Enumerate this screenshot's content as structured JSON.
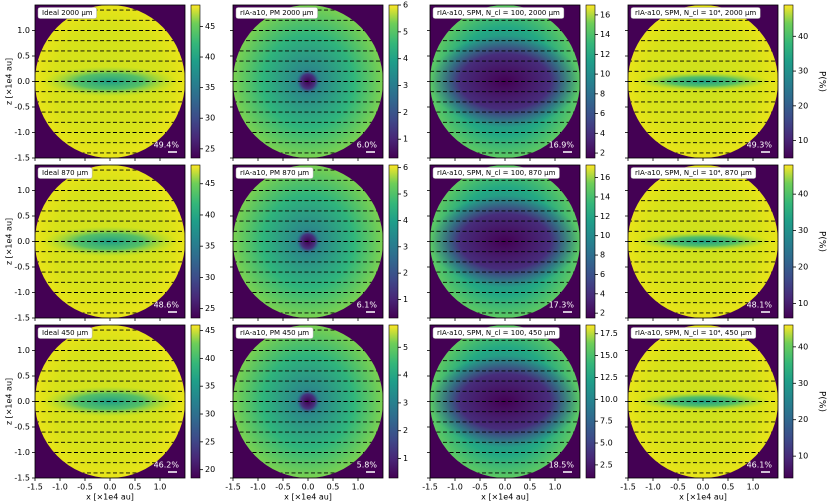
{
  "chart_data": [
    {
      "type": "heatmap",
      "title": "Ideal 2000 µm",
      "annotation": "49.4%",
      "clim": [
        23.5,
        48.5
      ],
      "cticks": [
        25,
        30,
        35,
        40,
        45
      ],
      "xlim": [
        -1.5,
        1.5
      ],
      "ylim": [
        -1.5,
        1.5
      ],
      "xticks": [
        {
          "value": -1.5,
          "label": "-1.5"
        },
        {
          "value": -1,
          "label": "-1.0"
        },
        -0.5,
        {
          "value": 0,
          "label": "0.0"
        },
        0.5,
        {
          "value": 1,
          "label": "1.0"
        }
      ],
      "yticks": [
        {
          "value": -1.5,
          "label": "-1.5"
        },
        {
          "value": -1,
          "label": "-1.0"
        },
        -0.5,
        {
          "value": 0,
          "label": "0.0"
        },
        0.5,
        {
          "value": 1,
          "label": "1.0"
        }
      ],
      "ylabel": "z [×1e4 au]"
    },
    {
      "type": "heatmap",
      "title": "rIA-a10, PM 2000 µm",
      "annotation": "6.0%",
      "clim": [
        0.3,
        6
      ],
      "cticks": [
        1,
        2,
        3,
        4,
        5,
        6
      ],
      "xlim": [
        -1.5,
        1.5
      ],
      "ylim": [
        -1.5,
        1.5
      ],
      "xticks": [
        {
          "value": -1.5,
          "label": "-1.5"
        },
        {
          "value": -1,
          "label": "-1.0"
        },
        -0.5,
        {
          "value": 0,
          "label": "0.0"
        },
        0.5,
        {
          "value": 1,
          "label": "1.0"
        }
      ],
      "yticks": [
        {
          "value": -1.5,
          "label": "-1.5"
        },
        {
          "value": -1,
          "label": "-1.0"
        },
        -0.5,
        {
          "value": 0,
          "label": "0.0"
        },
        0.5,
        {
          "value": 1,
          "label": "1.0"
        }
      ]
    },
    {
      "type": "heatmap",
      "title": "rIA-a10, SPM, N_cl = 100,  2000 µm",
      "annotation": "16.9%",
      "clim": [
        1.5,
        17
      ],
      "cticks": [
        2,
        4,
        6,
        8,
        10,
        12,
        14,
        16
      ],
      "xlim": [
        -1.5,
        1.5
      ],
      "ylim": [
        -1.5,
        1.5
      ],
      "xticks": [
        {
          "value": -1.5,
          "label": "-1.5"
        },
        {
          "value": -1,
          "label": "-1.0"
        },
        -0.5,
        {
          "value": 0,
          "label": "0.0"
        },
        0.5,
        {
          "value": 1,
          "label": "1.0"
        }
      ],
      "yticks": [
        {
          "value": -1.5,
          "label": "-1.5"
        },
        {
          "value": -1,
          "label": "-1.0"
        },
        -0.5,
        {
          "value": 0,
          "label": "0.0"
        },
        0.5,
        {
          "value": 1,
          "label": "1.0"
        }
      ]
    },
    {
      "type": "heatmap",
      "title": "rIA-a10, SPM, N_cl = 10⁴,  2000 µm",
      "annotation": "49.3%",
      "clim": [
        5,
        49
      ],
      "cticks": [
        10,
        20,
        30,
        40
      ],
      "xlim": [
        -1.5,
        1.5
      ],
      "ylim": [
        -1.5,
        1.5
      ],
      "xticks": [
        {
          "value": -1.5,
          "label": "-1.5"
        },
        {
          "value": -1,
          "label": "-1.0"
        },
        -0.5,
        {
          "value": 0,
          "label": "0.0"
        },
        0.5,
        {
          "value": 1,
          "label": "1.0"
        }
      ],
      "yticks": [
        {
          "value": -1.5,
          "label": "-1.5"
        },
        {
          "value": -1,
          "label": "-1.0"
        },
        -0.5,
        {
          "value": 0,
          "label": "0.0"
        },
        0.5,
        {
          "value": 1,
          "label": "1.0"
        }
      ],
      "clabel": "P(%)"
    },
    {
      "type": "heatmap",
      "title": "Ideal 870 µm",
      "annotation": "48.6%",
      "clim": [
        23.5,
        48
      ],
      "cticks": [
        25,
        30,
        35,
        40,
        45
      ],
      "xlim": [
        -1.5,
        1.5
      ],
      "ylim": [
        -1.5,
        1.5
      ],
      "xticks": [
        {
          "value": -1.5,
          "label": "-1.5"
        },
        {
          "value": -1,
          "label": "-1.0"
        },
        -0.5,
        {
          "value": 0,
          "label": "0.0"
        },
        0.5,
        {
          "value": 1,
          "label": "1.0"
        }
      ],
      "yticks": [
        {
          "value": -1.5,
          "label": "-1.5"
        },
        {
          "value": -1,
          "label": "-1.0"
        },
        -0.5,
        {
          "value": 0,
          "label": "0.0"
        },
        0.5,
        {
          "value": 1,
          "label": "1.0"
        }
      ],
      "ylabel": "z [×1e4 au]"
    },
    {
      "type": "heatmap",
      "title": "rIA-a10, PM 870 µm",
      "annotation": "6.1%",
      "clim": [
        0.3,
        6.1
      ],
      "cticks": [
        1,
        2,
        3,
        4,
        5,
        6
      ],
      "xlim": [
        -1.5,
        1.5
      ],
      "ylim": [
        -1.5,
        1.5
      ],
      "xticks": [
        {
          "value": -1.5,
          "label": "-1.5"
        },
        {
          "value": -1,
          "label": "-1.0"
        },
        -0.5,
        {
          "value": 0,
          "label": "0.0"
        },
        0.5,
        {
          "value": 1,
          "label": "1.0"
        }
      ],
      "yticks": [
        {
          "value": -1.5,
          "label": "-1.5"
        },
        {
          "value": -1,
          "label": "-1.0"
        },
        -0.5,
        {
          "value": 0,
          "label": "0.0"
        },
        0.5,
        {
          "value": 1,
          "label": "1.0"
        }
      ]
    },
    {
      "type": "heatmap",
      "title": "rIA-a10, SPM, N_cl = 100,  870 µm",
      "annotation": "17.3%",
      "clim": [
        1.5,
        17.3
      ],
      "cticks": [
        2,
        4,
        6,
        8,
        10,
        12,
        14,
        16
      ],
      "xlim": [
        -1.5,
        1.5
      ],
      "ylim": [
        -1.5,
        1.5
      ],
      "xticks": [
        {
          "value": -1.5,
          "label": "-1.5"
        },
        {
          "value": -1,
          "label": "-1.0"
        },
        -0.5,
        {
          "value": 0,
          "label": "0.0"
        },
        0.5,
        {
          "value": 1,
          "label": "1.0"
        }
      ],
      "yticks": [
        {
          "value": -1.5,
          "label": "-1.5"
        },
        {
          "value": -1,
          "label": "-1.0"
        },
        -0.5,
        {
          "value": 0,
          "label": "0.0"
        },
        0.5,
        {
          "value": 1,
          "label": "1.0"
        }
      ]
    },
    {
      "type": "heatmap",
      "title": "rIA-a10, SPM, N_cl = 10⁴,  870 µm",
      "annotation": "48.1%",
      "clim": [
        6,
        48
      ],
      "cticks": [
        10,
        20,
        30,
        40
      ],
      "xlim": [
        -1.5,
        1.5
      ],
      "ylim": [
        -1.5,
        1.5
      ],
      "xticks": [
        {
          "value": -1.5,
          "label": "-1.5"
        },
        {
          "value": -1,
          "label": "-1.0"
        },
        -0.5,
        {
          "value": 0,
          "label": "0.0"
        },
        0.5,
        {
          "value": 1,
          "label": "1.0"
        }
      ],
      "yticks": [
        {
          "value": -1.5,
          "label": "-1.5"
        },
        {
          "value": -1,
          "label": "-1.0"
        },
        -0.5,
        {
          "value": 0,
          "label": "0.0"
        },
        0.5,
        {
          "value": 1,
          "label": "1.0"
        }
      ],
      "clabel": "P(%)"
    },
    {
      "type": "heatmap",
      "title": "Ideal 450 µm",
      "annotation": "46.2%",
      "clim": [
        18.5,
        46
      ],
      "cticks": [
        20,
        25,
        30,
        35,
        40,
        45
      ],
      "xlim": [
        -1.5,
        1.5
      ],
      "ylim": [
        -1.5,
        1.5
      ],
      "xticks": [
        {
          "value": -1.5,
          "label": "-1.5"
        },
        {
          "value": -1,
          "label": "-1.0"
        },
        -0.5,
        {
          "value": 0,
          "label": "0.0"
        },
        0.5,
        {
          "value": 1,
          "label": "1.0"
        }
      ],
      "yticks": [
        {
          "value": -1.5,
          "label": "-1.5"
        },
        {
          "value": -1,
          "label": "-1.0"
        },
        -0.5,
        {
          "value": 0,
          "label": "0.0"
        },
        0.5,
        {
          "value": 1,
          "label": "1.0"
        }
      ],
      "xlabel": "x [×1e4 au]",
      "ylabel": "z [×1e4 au]"
    },
    {
      "type": "heatmap",
      "title": "rIA-a10, PM 450 µm",
      "annotation": "5.8%",
      "clim": [
        0.3,
        5.8
      ],
      "cticks": [
        1,
        2,
        3,
        4,
        5
      ],
      "xlim": [
        -1.5,
        1.5
      ],
      "ylim": [
        -1.5,
        1.5
      ],
      "xticks": [
        {
          "value": -1.5,
          "label": "-1.5"
        },
        {
          "value": -1,
          "label": "-1.0"
        },
        -0.5,
        {
          "value": 0,
          "label": "0.0"
        },
        0.5,
        {
          "value": 1,
          "label": "1.0"
        }
      ],
      "yticks": [
        {
          "value": -1.5,
          "label": "-1.5"
        },
        {
          "value": -1,
          "label": "-1.0"
        },
        -0.5,
        {
          "value": 0,
          "label": "0.0"
        },
        0.5,
        {
          "value": 1,
          "label": "1.0"
        }
      ],
      "xlabel": "x [×1e4 au]"
    },
    {
      "type": "heatmap",
      "title": "rIA-a10, SPM, N_cl = 100,  450 µm",
      "annotation": "18.5%",
      "clim": [
        1,
        18.5
      ],
      "cticks": [
        {
          "value": 2.5,
          "label": "2.5"
        },
        {
          "value": 5,
          "label": "5.0"
        },
        {
          "value": 7.5,
          "label": "7.5"
        },
        {
          "value": 10,
          "label": "10.0"
        },
        {
          "value": 12.5,
          "label": "12.5"
        },
        {
          "value": 15,
          "label": "15.0"
        },
        {
          "value": 17.5,
          "label": "17.5"
        }
      ],
      "xlim": [
        -1.5,
        1.5
      ],
      "ylim": [
        -1.5,
        1.5
      ],
      "xticks": [
        {
          "value": -1.5,
          "label": "-1.5"
        },
        {
          "value": -1,
          "label": "-1.0"
        },
        -0.5,
        {
          "value": 0,
          "label": "0.0"
        },
        0.5,
        {
          "value": 1,
          "label": "1.0"
        }
      ],
      "yticks": [
        {
          "value": -1.5,
          "label": "-1.5"
        },
        {
          "value": -1,
          "label": "-1.0"
        },
        -0.5,
        {
          "value": 0,
          "label": "0.0"
        },
        0.5,
        {
          "value": 1,
          "label": "1.0"
        }
      ],
      "xlabel": "x [×1e4 au]"
    },
    {
      "type": "heatmap",
      "title": "rIA-a10, SPM, N_cl = 10⁴,  450 µm",
      "annotation": "46.1%",
      "clim": [
        4,
        46
      ],
      "cticks": [
        10,
        20,
        30,
        40
      ],
      "xlim": [
        -1.5,
        1.5
      ],
      "ylim": [
        -1.5,
        1.5
      ],
      "xticks": [
        {
          "value": -1.5,
          "label": "-1.5"
        },
        {
          "value": -1,
          "label": "-1.0"
        },
        -0.5,
        {
          "value": 0,
          "label": "0.0"
        },
        0.5,
        {
          "value": 1,
          "label": "1.0"
        }
      ],
      "yticks": [
        {
          "value": -1.5,
          "label": "-1.5"
        },
        {
          "value": -1,
          "label": "-1.0"
        },
        -0.5,
        {
          "value": 0,
          "label": "0.0"
        },
        0.5,
        {
          "value": 1,
          "label": "1.0"
        }
      ],
      "xlabel": "x [×1e4 au]",
      "clabel": "P(%)"
    }
  ]
}
